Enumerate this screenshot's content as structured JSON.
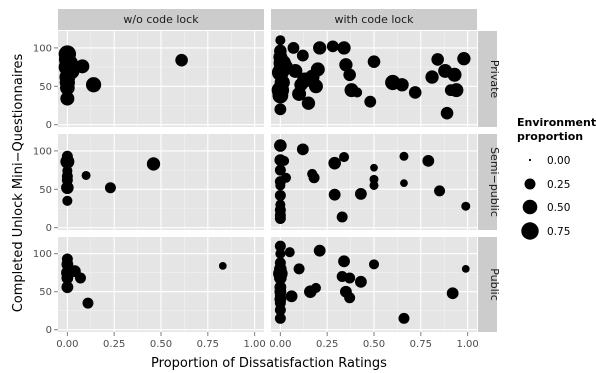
{
  "chart_data": {
    "type": "scatter",
    "xlabel": "Proportion of Dissatisfaction Ratings",
    "ylabel": "Completed Unlock Mini−Questionnaires",
    "xlim": [
      -0.05,
      1.05
    ],
    "ylim": [
      -3,
      122
    ],
    "x_ticks": [
      "0.00",
      "0.25",
      "0.50",
      "0.75",
      "1.00"
    ],
    "x_tick_values": [
      0,
      0.25,
      0.5,
      0.75,
      1.0
    ],
    "y_ticks": [
      "0",
      "50",
      "100"
    ],
    "y_tick_values": [
      0,
      50,
      100
    ],
    "grid": true,
    "columns": [
      "w/o code lock",
      "with code lock"
    ],
    "rows": [
      "Private",
      "Semi−public",
      "Public"
    ],
    "legend": {
      "title_line1": "Environment",
      "title_line2": "proportion",
      "labels": [
        "0.00",
        "0.25",
        "0.50",
        "0.75"
      ],
      "values": [
        0.0,
        0.25,
        0.5,
        0.75
      ],
      "placement": "right"
    },
    "panels": [
      {
        "row": "Private",
        "col": "w/o code lock",
        "points": [
          [
            0.0,
            92,
            0.75
          ],
          [
            0.0,
            85,
            0.7
          ],
          [
            0.01,
            80,
            0.75
          ],
          [
            0.0,
            75,
            0.75
          ],
          [
            0.02,
            70,
            0.7
          ],
          [
            0.0,
            62,
            0.6
          ],
          [
            0.0,
            55,
            0.55
          ],
          [
            0.0,
            48,
            0.5
          ],
          [
            0.0,
            34,
            0.45
          ],
          [
            0.08,
            76,
            0.45
          ],
          [
            0.14,
            52,
            0.55
          ],
          [
            0.61,
            84,
            0.35
          ]
        ]
      },
      {
        "row": "Private",
        "col": "with code lock",
        "points": [
          [
            0.0,
            110,
            0.2
          ],
          [
            0.0,
            96,
            0.35
          ],
          [
            0.0,
            88,
            0.45
          ],
          [
            0.01,
            80,
            0.75
          ],
          [
            0.02,
            75,
            0.75
          ],
          [
            0.0,
            68,
            0.7
          ],
          [
            0.01,
            55,
            0.55
          ],
          [
            0.0,
            45,
            0.75
          ],
          [
            0.0,
            38,
            0.6
          ],
          [
            0.0,
            20,
            0.3
          ],
          [
            0.07,
            100,
            0.3
          ],
          [
            0.08,
            70,
            0.45
          ],
          [
            0.1,
            40,
            0.45
          ],
          [
            0.11,
            52,
            0.4
          ],
          [
            0.12,
            90,
            0.3
          ],
          [
            0.13,
            58,
            0.55
          ],
          [
            0.15,
            28,
            0.4
          ],
          [
            0.17,
            62,
            0.5
          ],
          [
            0.19,
            50,
            0.45
          ],
          [
            0.2,
            72,
            0.45
          ],
          [
            0.21,
            100,
            0.4
          ],
          [
            0.28,
            102,
            0.3
          ],
          [
            0.34,
            100,
            0.4
          ],
          [
            0.35,
            78,
            0.4
          ],
          [
            0.37,
            65,
            0.35
          ],
          [
            0.38,
            45,
            0.45
          ],
          [
            0.41,
            42,
            0.2
          ],
          [
            0.48,
            30,
            0.3
          ],
          [
            0.5,
            82,
            0.35
          ],
          [
            0.6,
            55,
            0.55
          ],
          [
            0.65,
            52,
            0.4
          ],
          [
            0.72,
            42,
            0.35
          ],
          [
            0.81,
            62,
            0.4
          ],
          [
            0.84,
            85,
            0.35
          ],
          [
            0.88,
            70,
            0.45
          ],
          [
            0.89,
            15,
            0.35
          ],
          [
            0.91,
            45,
            0.3
          ],
          [
            0.93,
            65,
            0.45
          ],
          [
            0.94,
            45,
            0.45
          ],
          [
            0.98,
            86,
            0.4
          ]
        ]
      },
      {
        "row": "Semi−public",
        "col": "w/o code lock",
        "points": [
          [
            0.0,
            93,
            0.25
          ],
          [
            0.0,
            86,
            0.45
          ],
          [
            0.0,
            74,
            0.2
          ],
          [
            0.0,
            67,
            0.25
          ],
          [
            0.0,
            62,
            0.25
          ],
          [
            0.0,
            52,
            0.35
          ],
          [
            0.0,
            35,
            0.2
          ],
          [
            0.1,
            68,
            0.15
          ],
          [
            0.23,
            52,
            0.25
          ],
          [
            0.46,
            83,
            0.4
          ]
        ]
      },
      {
        "row": "Semi−public",
        "col": "with code lock",
        "points": [
          [
            0.0,
            107,
            0.35
          ],
          [
            0.0,
            88,
            0.3
          ],
          [
            0.0,
            75,
            0.25
          ],
          [
            0.0,
            60,
            0.25
          ],
          [
            0.0,
            55,
            0.2
          ],
          [
            0.0,
            42,
            0.25
          ],
          [
            0.0,
            30,
            0.2
          ],
          [
            0.0,
            23,
            0.25
          ],
          [
            0.0,
            20,
            0.2
          ],
          [
            0.0,
            16,
            0.25
          ],
          [
            0.0,
            12,
            0.25
          ],
          [
            0.02,
            87,
            0.2
          ],
          [
            0.03,
            65,
            0.2
          ],
          [
            0.12,
            102,
            0.3
          ],
          [
            0.17,
            70,
            0.2
          ],
          [
            0.18,
            65,
            0.25
          ],
          [
            0.29,
            84,
            0.35
          ],
          [
            0.29,
            43,
            0.3
          ],
          [
            0.33,
            14,
            0.25
          ],
          [
            0.34,
            92,
            0.2
          ],
          [
            0.43,
            44,
            0.3
          ],
          [
            0.5,
            78,
            0.1
          ],
          [
            0.5,
            63,
            0.15
          ],
          [
            0.5,
            55,
            0.15
          ],
          [
            0.66,
            93,
            0.15
          ],
          [
            0.66,
            58,
            0.1
          ],
          [
            0.79,
            87,
            0.3
          ],
          [
            0.85,
            48,
            0.25
          ],
          [
            0.99,
            28,
            0.15
          ]
        ]
      },
      {
        "row": "Public",
        "col": "w/o code lock",
        "points": [
          [
            0.0,
            93,
            0.25
          ],
          [
            0.0,
            86,
            0.3
          ],
          [
            0.0,
            75,
            0.35
          ],
          [
            0.0,
            68,
            0.3
          ],
          [
            0.0,
            56,
            0.3
          ],
          [
            0.04,
            77,
            0.3
          ],
          [
            0.07,
            68,
            0.25
          ],
          [
            0.11,
            35,
            0.25
          ],
          [
            0.83,
            84,
            0.1
          ]
        ]
      },
      {
        "row": "Public",
        "col": "with code lock",
        "points": [
          [
            0.0,
            110,
            0.25
          ],
          [
            0.0,
            100,
            0.2
          ],
          [
            0.0,
            88,
            0.25
          ],
          [
            0.0,
            80,
            0.35
          ],
          [
            0.0,
            74,
            0.5
          ],
          [
            0.0,
            68,
            0.35
          ],
          [
            0.0,
            56,
            0.3
          ],
          [
            0.0,
            50,
            0.3
          ],
          [
            0.0,
            45,
            0.25
          ],
          [
            0.0,
            40,
            0.3
          ],
          [
            0.0,
            35,
            0.25
          ],
          [
            0.0,
            26,
            0.25
          ],
          [
            0.0,
            15,
            0.25
          ],
          [
            0.05,
            102,
            0.2
          ],
          [
            0.06,
            44,
            0.3
          ],
          [
            0.1,
            80,
            0.25
          ],
          [
            0.16,
            50,
            0.35
          ],
          [
            0.19,
            55,
            0.2
          ],
          [
            0.21,
            104,
            0.3
          ],
          [
            0.33,
            70,
            0.25
          ],
          [
            0.34,
            90,
            0.3
          ],
          [
            0.35,
            50,
            0.3
          ],
          [
            0.37,
            42,
            0.25
          ],
          [
            0.37,
            68,
            0.25
          ],
          [
            0.43,
            63,
            0.3
          ],
          [
            0.5,
            86,
            0.2
          ],
          [
            0.66,
            15,
            0.25
          ],
          [
            0.92,
            48,
            0.3
          ],
          [
            0.99,
            80,
            0.1
          ]
        ]
      }
    ]
  }
}
